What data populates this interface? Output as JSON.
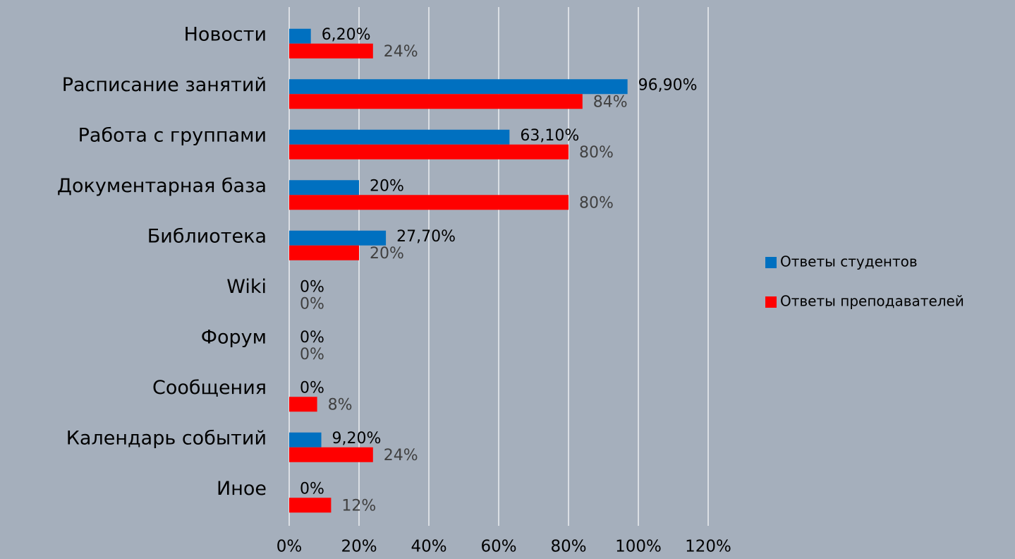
{
  "chart_data": {
    "type": "hbar",
    "categories": [
      "Новости",
      "Расписание занятий",
      "Работа с группами",
      "Документарная база",
      "Библиотека",
      "Wiki",
      "Форум",
      "Сообщения",
      "Календарь событий",
      "Иное"
    ],
    "series": [
      {
        "name": "Ответы студентов",
        "color": "#0070c0",
        "values": [
          6.2,
          96.9,
          63.1,
          20,
          27.7,
          0,
          0,
          0,
          9.2,
          0
        ],
        "value_labels": [
          "6,20%",
          "96,90%",
          "63,10%",
          "20%",
          "27,70%",
          "0%",
          "0%",
          "0%",
          "9,20%",
          "0%"
        ]
      },
      {
        "name": "Ответы преподавателей",
        "color": "#ff0000",
        "values": [
          24,
          84,
          80,
          80,
          20,
          0,
          0,
          8,
          24,
          12
        ],
        "value_labels": [
          "24%",
          "84%",
          "80%",
          "80%",
          "20%",
          "0%",
          "0%",
          "8%",
          "24%",
          "12%"
        ]
      }
    ],
    "xlim": [
      0,
      120
    ],
    "xticks": [
      {
        "value": 0,
        "label": "0%"
      },
      {
        "value": 20,
        "label": "20%"
      },
      {
        "value": 40,
        "label": "40%"
      },
      {
        "value": 60,
        "label": "60%"
      },
      {
        "value": 80,
        "label": "80%"
      },
      {
        "value": 100,
        "label": "100%"
      },
      {
        "value": 120,
        "label": "120%"
      }
    ],
    "grid": true,
    "legend": "right"
  }
}
